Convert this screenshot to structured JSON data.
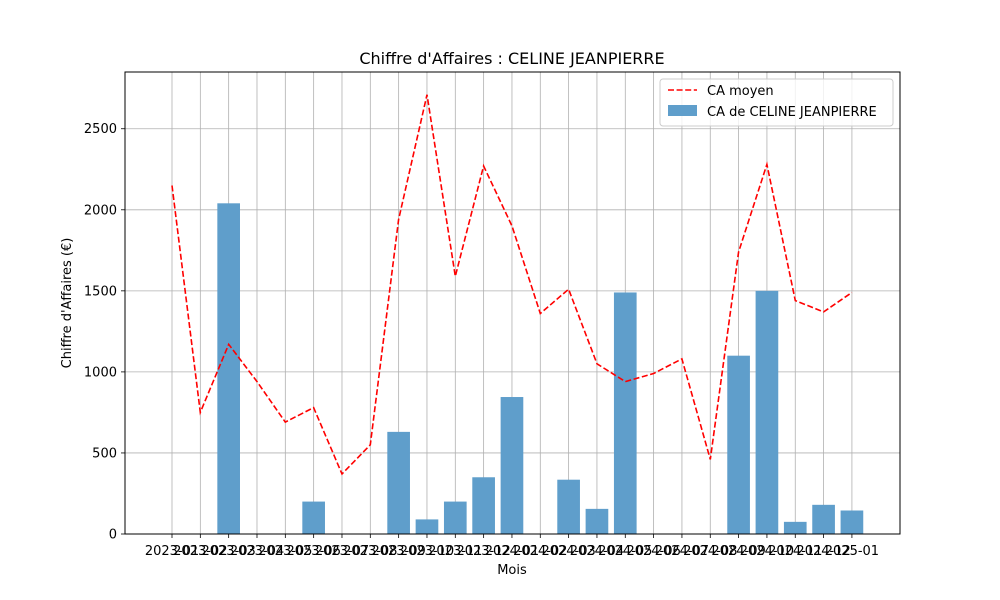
{
  "chart_data": {
    "type": "bar",
    "title": "Chiffre d'Affaires : CELINE JEANPIERRE",
    "xlabel": "Mois",
    "ylabel": "Chiffre d'Affaires (€)",
    "ylim": [
      0,
      2850
    ],
    "yticks": [
      0,
      500,
      1000,
      1500,
      2000,
      2500
    ],
    "grid": true,
    "legend_position": "top-right",
    "categories": [
      "2023-01",
      "2023-02",
      "2023-03",
      "2023-04",
      "2023-05",
      "2023-06",
      "2023-07",
      "2023-08",
      "2023-09",
      "2023-10",
      "2023-11",
      "2023-12",
      "2024-01",
      "2024-02",
      "2024-03",
      "2024-04",
      "2024-05",
      "2024-06",
      "2024-07",
      "2024-08",
      "2024-09",
      "2024-10",
      "2024-11",
      "2024-12",
      "2025-01"
    ],
    "series": [
      {
        "name": "CA moyen",
        "type": "line",
        "style": "dashed",
        "color": "#ff0000",
        "values": [
          2150,
          750,
          1170,
          940,
          690,
          780,
          370,
          550,
          1940,
          2710,
          1590,
          2270,
          1900,
          1360,
          1510,
          1050,
          940,
          990,
          1080,
          460,
          1740,
          2280,
          1440,
          1370,
          1490
        ]
      },
      {
        "name": "CA de CELINE JEANPIERRE",
        "type": "bar",
        "color": "#5f9ecb",
        "values": [
          0,
          0,
          2040,
          0,
          0,
          200,
          0,
          0,
          630,
          90,
          200,
          350,
          845,
          0,
          335,
          155,
          1490,
          0,
          0,
          0,
          1100,
          1500,
          75,
          180,
          145
        ]
      }
    ]
  }
}
